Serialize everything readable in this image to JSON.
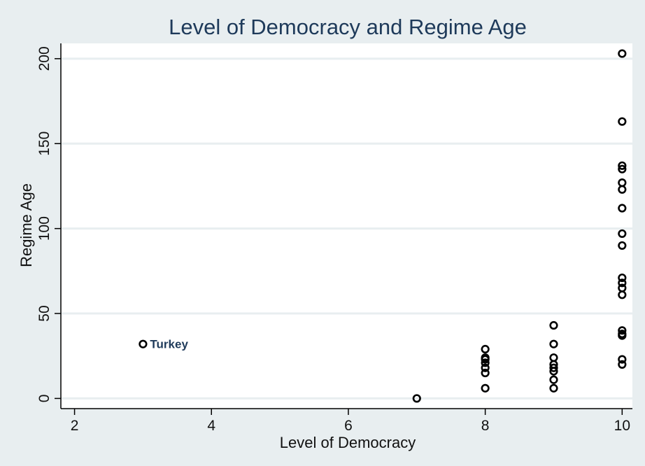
{
  "chart_data": {
    "type": "scatter",
    "title": "Level of Democracy and Regime Age",
    "xlabel": "Level of Democracy",
    "ylabel": "Regime Age",
    "xlim": [
      1.8,
      10.15
    ],
    "ylim": [
      -6,
      209
    ],
    "x_ticks": [
      "2",
      "4",
      "6",
      "8",
      "10"
    ],
    "x_tick_values": [
      2,
      4,
      6,
      8,
      10
    ],
    "y_ticks": [
      "0",
      "50",
      "100",
      "150",
      "200"
    ],
    "y_tick_values": [
      0,
      50,
      100,
      150,
      200
    ],
    "grid": "horizontal",
    "marker": "hollow-circle",
    "marker_color": "#000000",
    "gridline_color": "#e8eef0",
    "points": [
      {
        "x": 3,
        "y": 32
      },
      {
        "x": 7,
        "y": 0
      },
      {
        "x": 8,
        "y": 29
      },
      {
        "x": 8,
        "y": 24
      },
      {
        "x": 8,
        "y": 23
      },
      {
        "x": 8,
        "y": 21
      },
      {
        "x": 8,
        "y": 18
      },
      {
        "x": 8,
        "y": 15
      },
      {
        "x": 8,
        "y": 6
      },
      {
        "x": 9,
        "y": 43
      },
      {
        "x": 9,
        "y": 32
      },
      {
        "x": 9,
        "y": 24
      },
      {
        "x": 9,
        "y": 20
      },
      {
        "x": 9,
        "y": 18
      },
      {
        "x": 9,
        "y": 16
      },
      {
        "x": 9,
        "y": 11
      },
      {
        "x": 9,
        "y": 6
      },
      {
        "x": 10,
        "y": 203
      },
      {
        "x": 10,
        "y": 163
      },
      {
        "x": 10,
        "y": 137
      },
      {
        "x": 10,
        "y": 135
      },
      {
        "x": 10,
        "y": 127
      },
      {
        "x": 10,
        "y": 123
      },
      {
        "x": 10,
        "y": 112
      },
      {
        "x": 10,
        "y": 97
      },
      {
        "x": 10,
        "y": 90
      },
      {
        "x": 10,
        "y": 71
      },
      {
        "x": 10,
        "y": 68
      },
      {
        "x": 10,
        "y": 65
      },
      {
        "x": 10,
        "y": 61
      },
      {
        "x": 10,
        "y": 40
      },
      {
        "x": 10,
        "y": 38
      },
      {
        "x": 10,
        "y": 37
      },
      {
        "x": 10,
        "y": 23
      },
      {
        "x": 10,
        "y": 20
      }
    ],
    "annotations": [
      {
        "text": "Turkey",
        "x": 3,
        "y": 32
      }
    ]
  }
}
